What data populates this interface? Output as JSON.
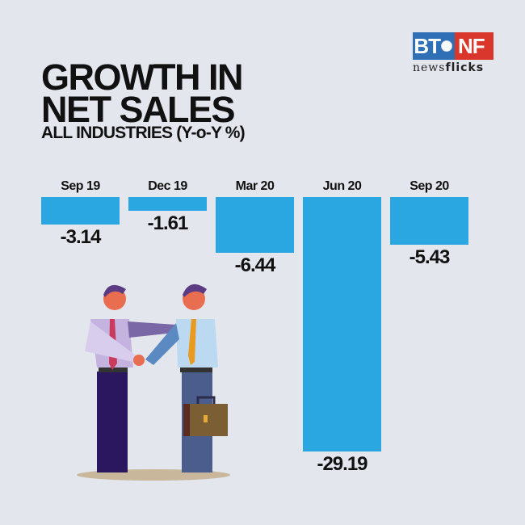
{
  "header": {
    "title_line1": "GROWTH IN",
    "title_line2": "NET SALES",
    "subtitle": "ALL INDUSTRIES (Y-o-Y %)"
  },
  "logo": {
    "left": "BT",
    "right": "NF",
    "tagline_light": "news",
    "tagline_bold": "flicks"
  },
  "colors": {
    "background": "#e4e6ed",
    "bar": "#2aa7e0",
    "logo_blue": "#2f6fb5",
    "logo_red": "#d9372c"
  },
  "chart_data": {
    "type": "bar",
    "title": "GROWTH IN NET SALES",
    "subtitle": "ALL INDUSTRIES (Y-o-Y %)",
    "categories": [
      "Sep 19",
      "Dec 19",
      "Mar 20",
      "Jun 20",
      "Sep 20"
    ],
    "values": [
      -3.14,
      -1.61,
      -6.44,
      -29.19,
      -5.43
    ],
    "labels": [
      "-3.14",
      "-1.61",
      "-6.44",
      "-29.19",
      "-5.43"
    ],
    "xlabel": "",
    "ylabel": "Y-o-Y %",
    "ylim": [
      -30,
      0
    ],
    "grid": false,
    "legend": null,
    "orientation": "bars hang downward from common top baseline"
  }
}
